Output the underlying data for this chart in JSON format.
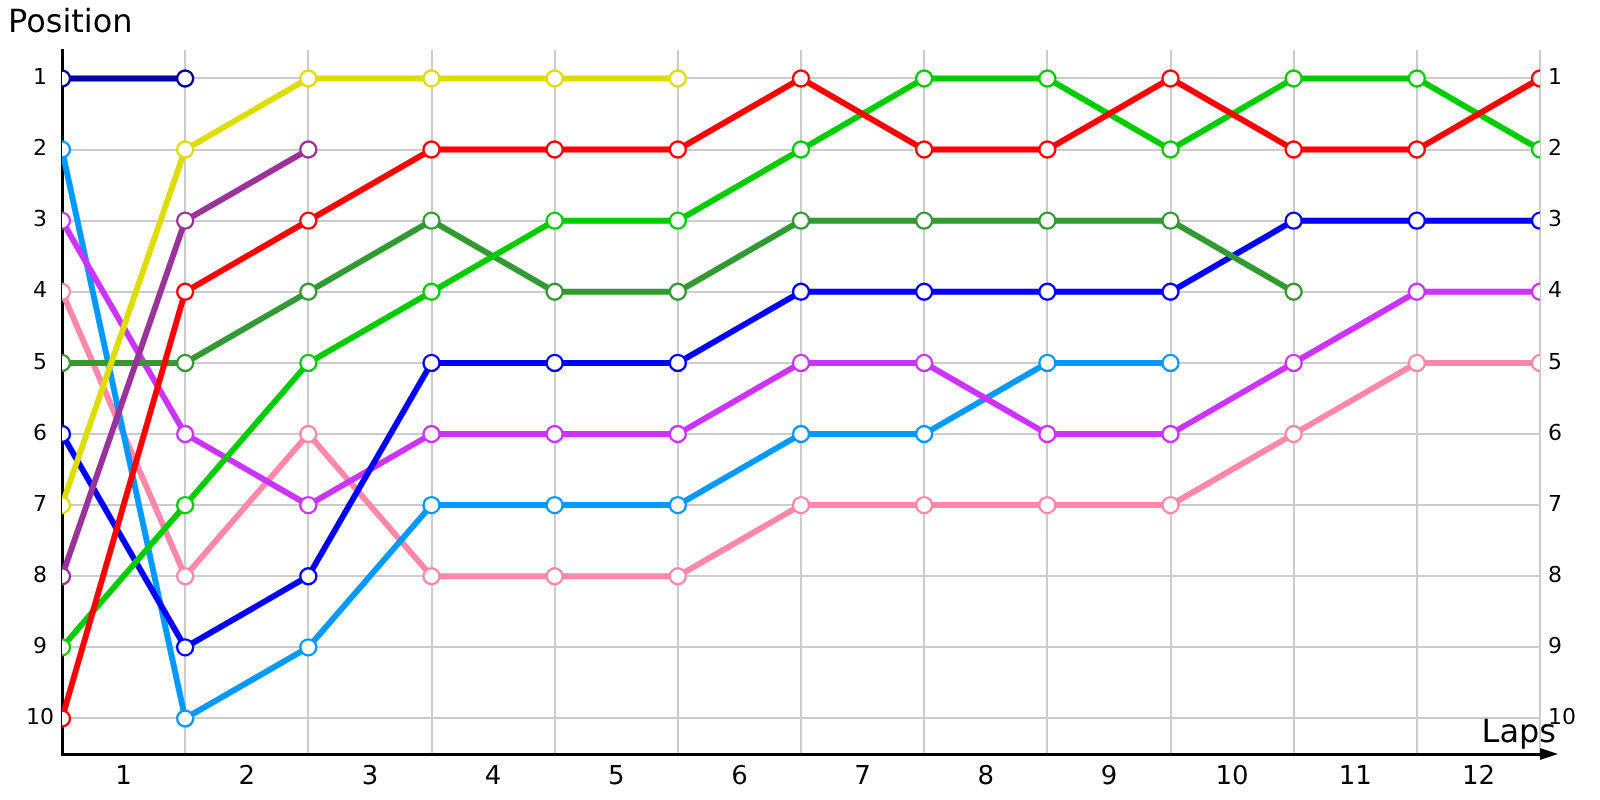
{
  "chart_data": {
    "type": "line",
    "xlabel": "Laps",
    "ylabel": "Position",
    "marker": "circle",
    "line_style": "solid",
    "grid": true,
    "x": [
      0,
      1,
      2,
      3,
      4,
      5,
      6,
      7,
      8,
      9,
      10,
      11,
      12
    ],
    "xlim": [
      0,
      12
    ],
    "xticks": [
      {
        "value": 0,
        "label": null
      },
      {
        "value": 0.5,
        "label": "1"
      },
      {
        "value": 1,
        "label": null
      },
      {
        "value": 1.5,
        "label": "2"
      },
      {
        "value": 2,
        "label": null
      },
      {
        "value": 2.5,
        "label": "3"
      },
      {
        "value": 3,
        "label": null
      },
      {
        "value": 3.5,
        "label": "4"
      },
      {
        "value": 4,
        "label": null
      },
      {
        "value": 4.5,
        "label": "5"
      },
      {
        "value": 5,
        "label": null
      },
      {
        "value": 5.5,
        "label": "6"
      },
      {
        "value": 6,
        "label": null
      },
      {
        "value": 6.5,
        "label": "7"
      },
      {
        "value": 7,
        "label": null
      },
      {
        "value": 7.5,
        "label": "8"
      },
      {
        "value": 8,
        "label": null
      },
      {
        "value": 8.5,
        "label": "9"
      },
      {
        "value": 9,
        "label": null
      },
      {
        "value": 9.5,
        "label": "10"
      },
      {
        "value": 10,
        "label": null
      },
      {
        "value": 10.5,
        "label": "11"
      },
      {
        "value": 11,
        "label": null
      },
      {
        "value": 11.5,
        "label": "12"
      },
      {
        "value": 12,
        "label": null
      }
    ],
    "ylim": [
      10.5,
      0.6
    ],
    "yticks": [
      1,
      2,
      3,
      4,
      5,
      6,
      7,
      8,
      9,
      10
    ],
    "y2lim": [
      10.5,
      0.6
    ],
    "y2ticks": [
      1,
      2,
      3,
      4,
      5,
      6,
      7,
      8,
      9,
      10
    ],
    "series": [
      {
        "color": "#0000a0",
        "x": [
          0,
          1
        ],
        "values": [
          1,
          1
        ]
      },
      {
        "color": "#dddd00",
        "x": [
          0,
          1,
          2,
          3,
          4,
          5
        ],
        "values": [
          7,
          2,
          1,
          1,
          1,
          1
        ]
      },
      {
        "color": "#993399",
        "x": [
          0,
          1,
          2
        ],
        "values": [
          8,
          3,
          2
        ]
      },
      {
        "color": "#ff0000",
        "values": [
          10,
          4,
          3,
          2,
          2,
          2,
          1,
          2,
          2,
          1,
          2,
          2,
          1
        ]
      },
      {
        "color": "#00cc00",
        "values": [
          9,
          7,
          5,
          4,
          3,
          3,
          2,
          1,
          1,
          2,
          1,
          1,
          2
        ]
      },
      {
        "color": "#339933",
        "x": [
          0,
          1,
          2,
          3,
          4,
          5,
          6,
          7,
          8,
          9,
          10
        ],
        "values": [
          5,
          5,
          4,
          3,
          4,
          4,
          3,
          3,
          3,
          3,
          4
        ]
      },
      {
        "color": "#0000ff",
        "values": [
          6,
          9,
          8,
          5,
          5,
          5,
          4,
          4,
          4,
          4,
          3,
          3,
          3
        ]
      },
      {
        "color": "#cc33ff",
        "values": [
          3,
          6,
          7,
          6,
          6,
          6,
          5,
          5,
          6,
          6,
          5,
          4,
          4
        ]
      },
      {
        "color": "#0099ff",
        "x": [
          0,
          1,
          2,
          3,
          4,
          5,
          6,
          7,
          8,
          9
        ],
        "values": [
          2,
          10,
          9,
          7,
          7,
          7,
          6,
          6,
          5,
          5
        ]
      },
      {
        "color": "#ff88aa",
        "values": [
          4,
          8,
          6,
          8,
          8,
          8,
          7,
          7,
          7,
          7,
          6,
          5,
          5
        ]
      }
    ]
  }
}
